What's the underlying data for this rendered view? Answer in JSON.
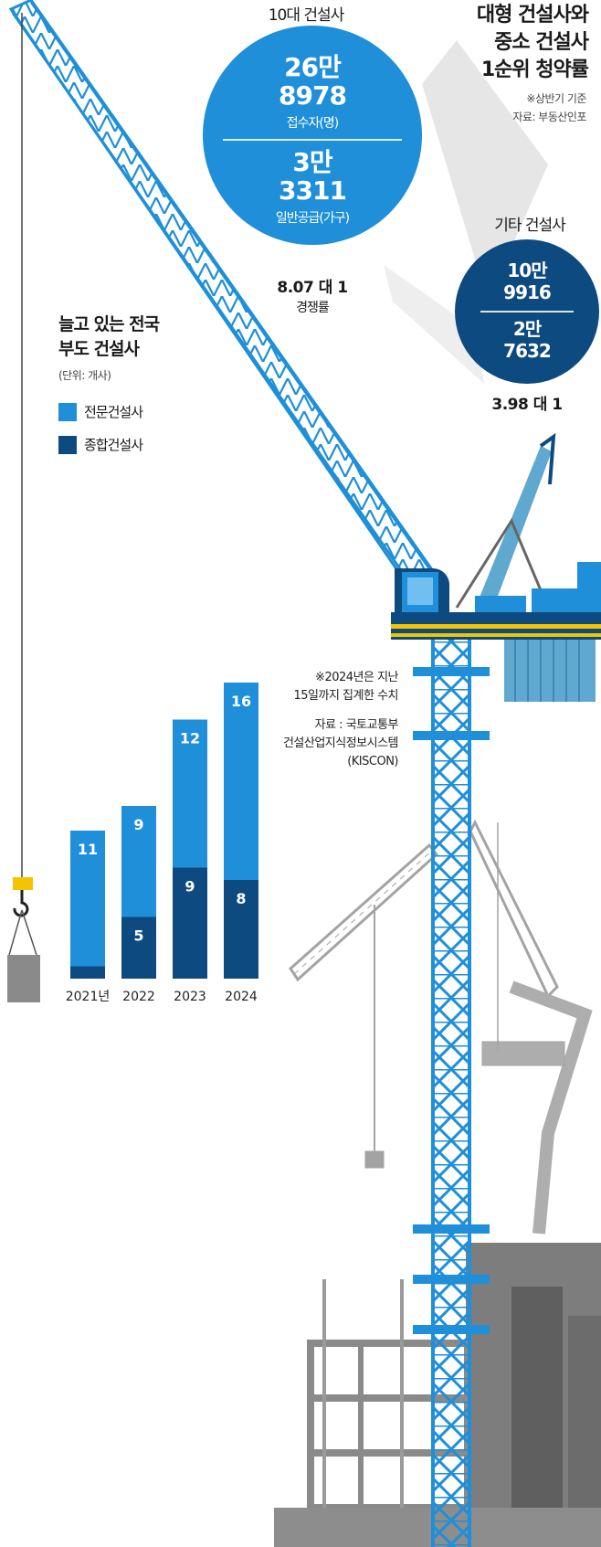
{
  "header": {
    "title_lines": [
      "대형 건설사와",
      "중소 건설사",
      "1순위 청약률"
    ],
    "note": "※상반기 기준",
    "source": "자료: 부동산인포"
  },
  "big_bubble": {
    "label": "10대 건설사",
    "applicants_value_lines": [
      "26만",
      "8978"
    ],
    "applicants_unit": "접수자(명)",
    "supply_value_lines": [
      "3만",
      "3311"
    ],
    "supply_unit": "일반공급(가구)",
    "ratio": "8.07 대 1",
    "ratio_label": "경쟁률",
    "color": "#1e8fd8"
  },
  "small_bubble": {
    "label": "기타 건설사",
    "applicants_value_lines": [
      "10만",
      "9916"
    ],
    "supply_value_lines": [
      "2만",
      "7632"
    ],
    "ratio": "3.98 대 1",
    "color": "#0d4a80"
  },
  "chart_note": {
    "lines": [
      "※2024년은 지난",
      "15일까지 집계한 수치"
    ],
    "source_lines": [
      "자료 : 국토교통부",
      "건설산업지식정보시스템",
      "(KISCON)"
    ]
  },
  "chart_data": {
    "type": "bar",
    "stacked": true,
    "title_lines": [
      "늘고 있는 전국",
      "부도 건설사"
    ],
    "unit": "(단위: 개사)",
    "categories": [
      "2021년",
      "2022",
      "2023",
      "2024"
    ],
    "series": [
      {
        "name": "종합건설사",
        "values": [
          1,
          5,
          9,
          8
        ],
        "color": "#0d4a80"
      },
      {
        "name": "전문건설사",
        "values": [
          11,
          9,
          12,
          16
        ],
        "color": "#1e8fd8"
      }
    ],
    "legend_order": [
      "전문건설사",
      "종합건설사"
    ],
    "legend_placement": "top-left",
    "grid": false
  },
  "colors": {
    "crane_blue": "#1e8fd8",
    "crane_dark": "#0d4a80",
    "crane_yellow": "#f5c400",
    "building_gray": "#8a8a8a",
    "bubble_connector": "#e6e6e6"
  }
}
